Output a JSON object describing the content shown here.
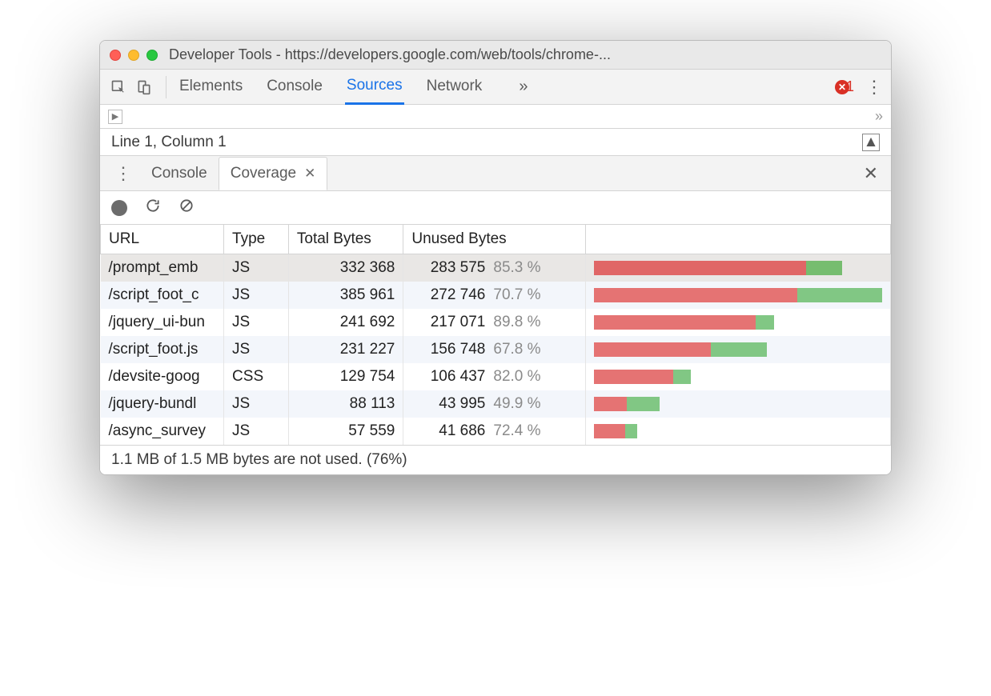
{
  "window": {
    "title": "Developer Tools - https://developers.google.com/web/tools/chrome-..."
  },
  "toolbar": {
    "tabs": [
      "Elements",
      "Console",
      "Sources",
      "Network"
    ],
    "active_tab": "Sources",
    "overflow_glyph": "»",
    "error_count": "1"
  },
  "status": {
    "line_col": "Line 1, Column 1"
  },
  "drawer": {
    "tabs": [
      "Console",
      "Coverage"
    ],
    "active_tab": "Coverage"
  },
  "coverage": {
    "columns": [
      "URL",
      "Type",
      "Total Bytes",
      "Unused Bytes"
    ],
    "max_total": 385961,
    "colors": {
      "unused": "#e57373",
      "used": "#81c784",
      "pct_text": "#8a8a8a",
      "row_alt_bg": "#f3f6fb",
      "row_sel_bg": "#e9e7e5",
      "border": "#d4d4d4"
    },
    "rows": [
      {
        "url": "/prompt_emb",
        "type": "JS",
        "total": 332368,
        "total_disp": "332 368",
        "unused": 283575,
        "unused_disp": "283 575",
        "pct": "85.3 %",
        "selected": true
      },
      {
        "url": "/script_foot_c",
        "type": "JS",
        "total": 385961,
        "total_disp": "385 961",
        "unused": 272746,
        "unused_disp": "272 746",
        "pct": "70.7 %",
        "selected": false
      },
      {
        "url": "/jquery_ui-bun",
        "type": "JS",
        "total": 241692,
        "total_disp": "241 692",
        "unused": 217071,
        "unused_disp": "217 071",
        "pct": "89.8 %",
        "selected": false
      },
      {
        "url": "/script_foot.js",
        "type": "JS",
        "total": 231227,
        "total_disp": "231 227",
        "unused": 156748,
        "unused_disp": "156 748",
        "pct": "67.8 %",
        "selected": false
      },
      {
        "url": "/devsite-goog",
        "type": "CSS",
        "total": 129754,
        "total_disp": "129 754",
        "unused": 106437,
        "unused_disp": "106 437",
        "pct": "82.0 %",
        "selected": false
      },
      {
        "url": "/jquery-bundl",
        "type": "JS",
        "total": 88113,
        "total_disp": "88 113",
        "unused": 43995,
        "unused_disp": "43 995",
        "pct": "49.9 %",
        "selected": false
      },
      {
        "url": "/async_survey",
        "type": "JS",
        "total": 57559,
        "total_disp": "57 559",
        "unused": 41686,
        "unused_disp": "41 686",
        "pct": "72.4 %",
        "selected": false
      }
    ],
    "footer": "1.1 MB of 1.5 MB bytes are not used. (76%)"
  }
}
